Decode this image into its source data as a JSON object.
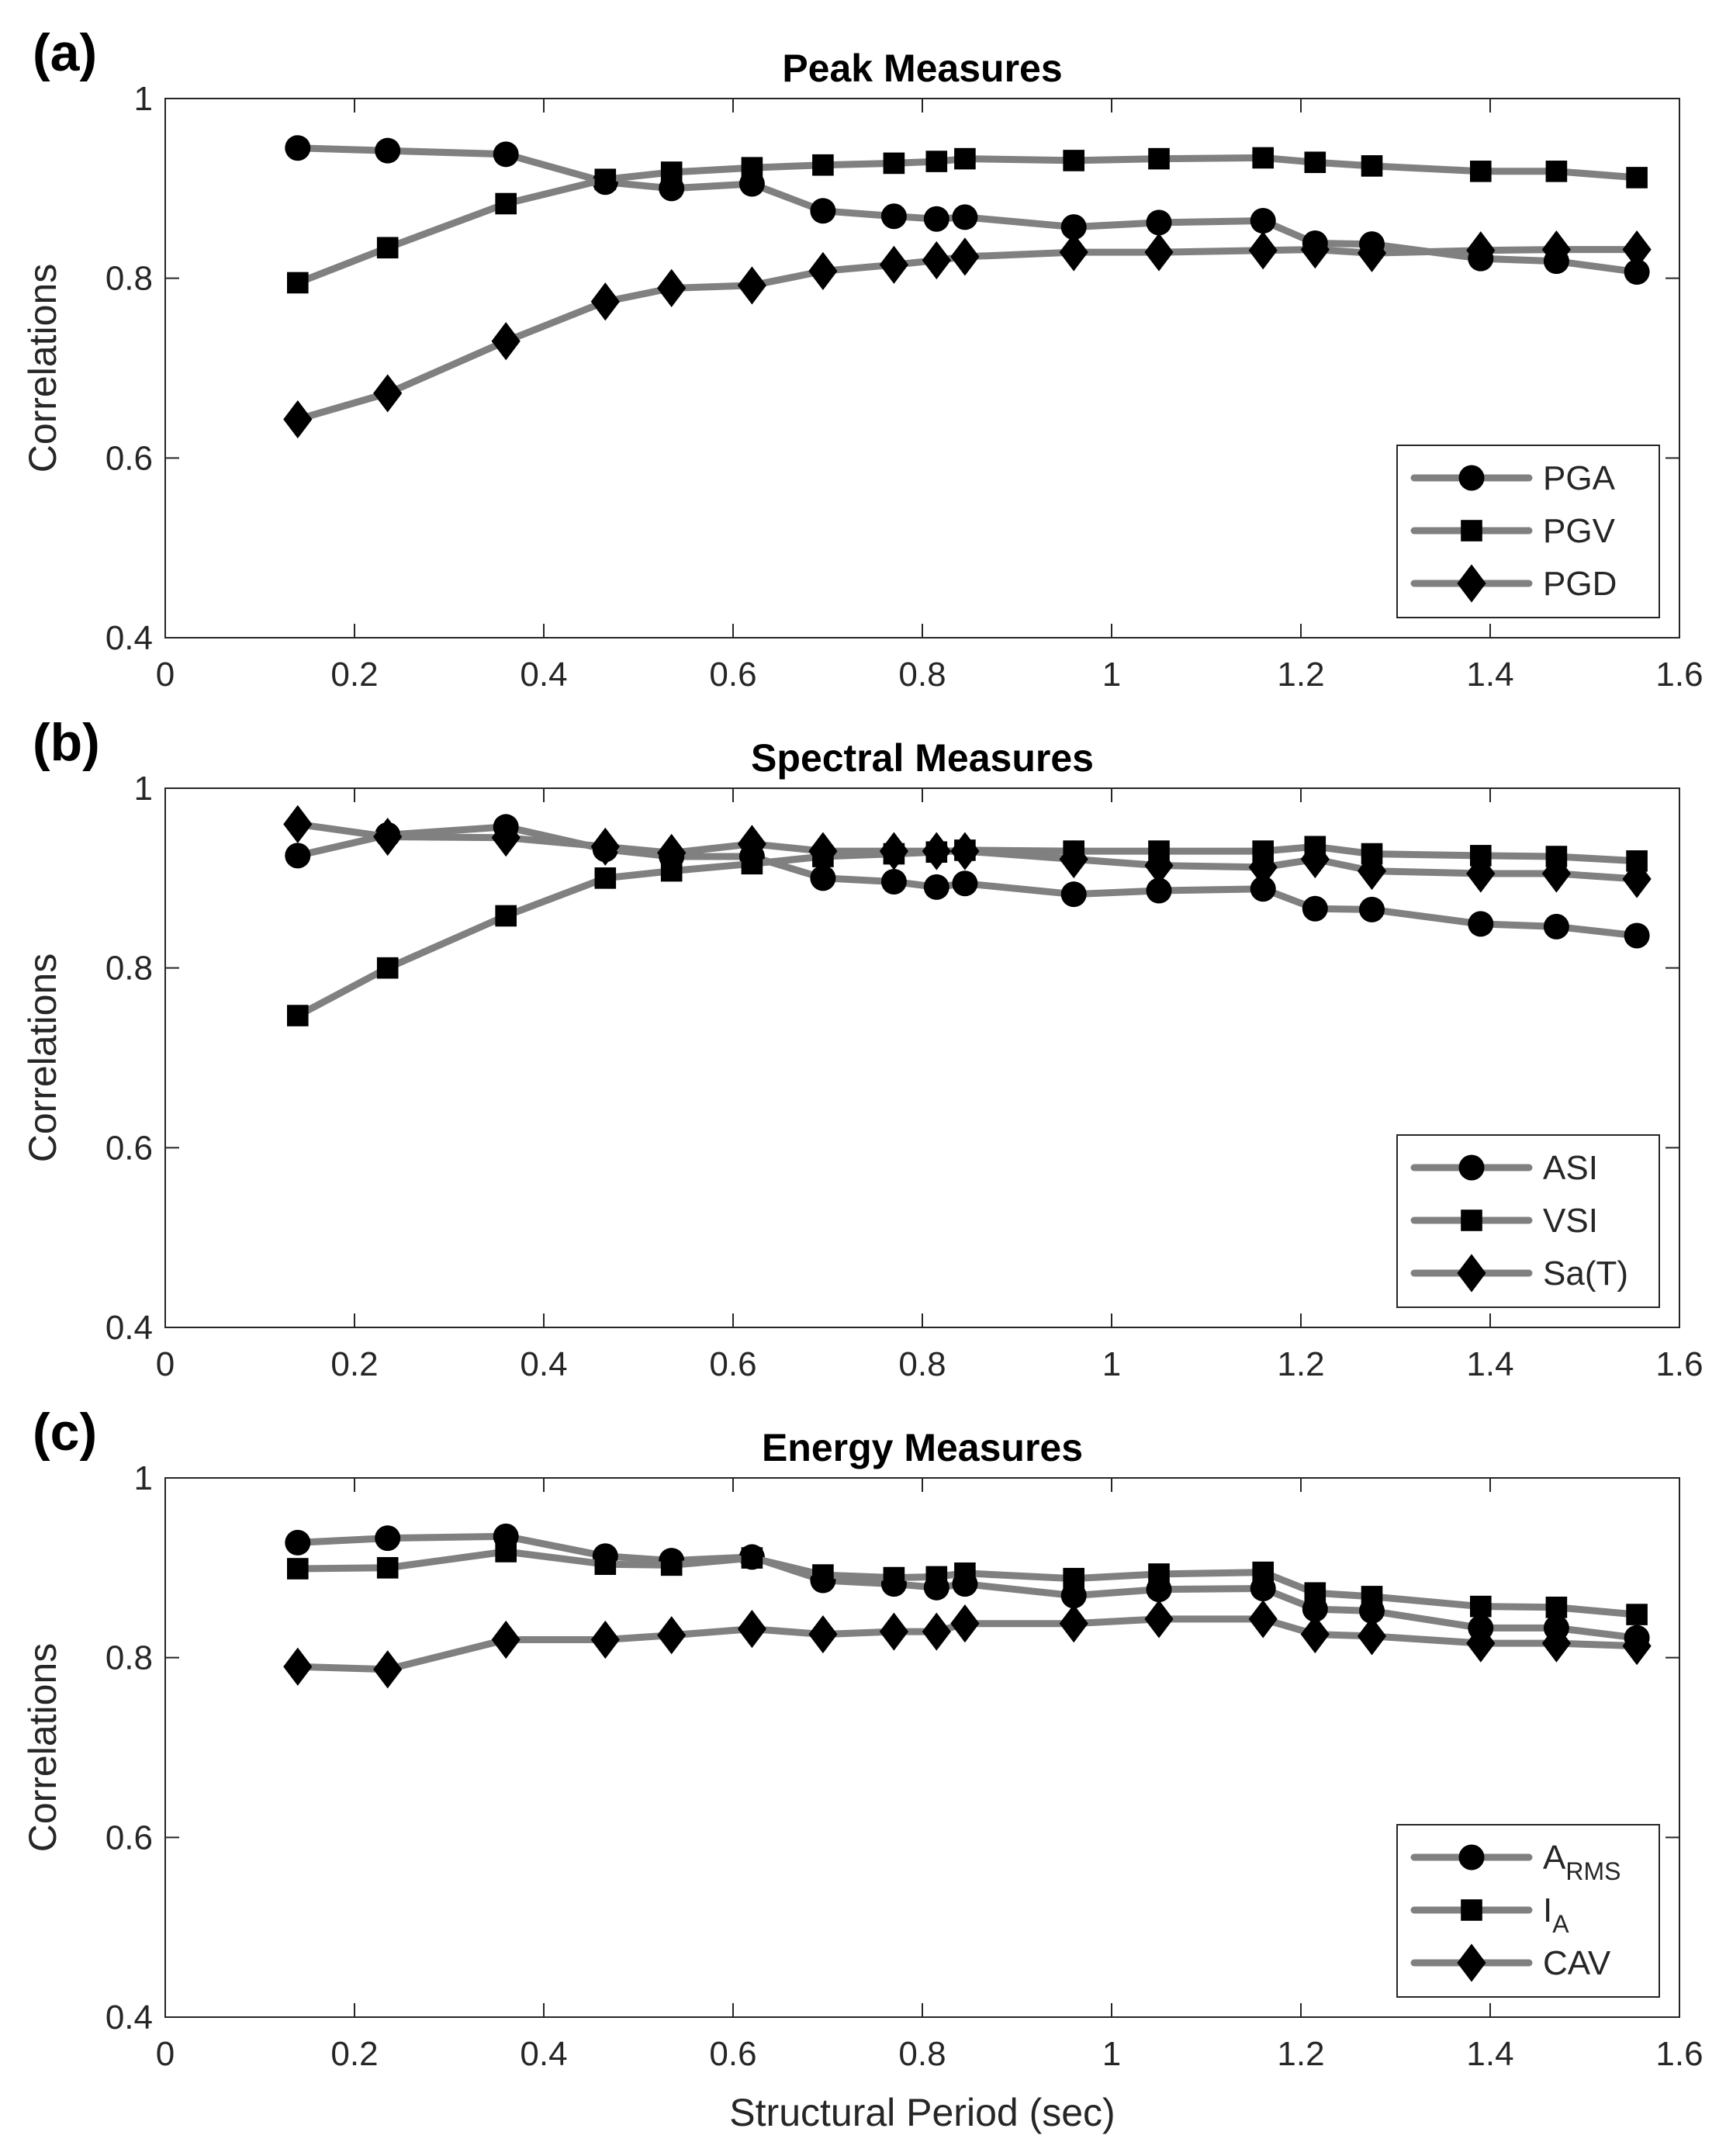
{
  "chart_data": [
    {
      "type": "line",
      "panel_label": "(a)",
      "title": "Peak Measures",
      "xlabel": "",
      "ylabel": "Correlations",
      "xlim": [
        0,
        1.6
      ],
      "ylim": [
        0.4,
        1
      ],
      "xticks": [
        "0",
        "0.2",
        "0.4",
        "0.6",
        "0.8",
        "1",
        "1.2",
        "1.4",
        "1.6"
      ],
      "yticks": [
        "0.4",
        "0.6",
        "0.8",
        "1"
      ],
      "grid": false,
      "legend_position": "bottom-right",
      "x": [
        0.14,
        0.235,
        0.36,
        0.465,
        0.535,
        0.62,
        0.695,
        0.77,
        0.815,
        0.845,
        0.96,
        1.05,
        1.16,
        1.215,
        1.275,
        1.39,
        1.47,
        1.555
      ],
      "series": [
        {
          "name": "PGA",
          "name_sub": "",
          "marker": "circle",
          "values": [
            0.945,
            0.942,
            0.938,
            0.907,
            0.9,
            0.905,
            0.875,
            0.869,
            0.866,
            0.868,
            0.857,
            0.862,
            0.864,
            0.839,
            0.838,
            0.822,
            0.819,
            0.807
          ]
        },
        {
          "name": "PGV",
          "name_sub": "",
          "marker": "square",
          "values": [
            0.795,
            0.834,
            0.883,
            0.91,
            0.918,
            0.923,
            0.926,
            0.928,
            0.93,
            0.933,
            0.931,
            0.933,
            0.934,
            0.929,
            0.925,
            0.919,
            0.919,
            0.912
          ]
        },
        {
          "name": "PGD",
          "name_sub": "",
          "marker": "diamond",
          "values": [
            0.643,
            0.672,
            0.73,
            0.774,
            0.789,
            0.792,
            0.808,
            0.815,
            0.82,
            0.824,
            0.829,
            0.829,
            0.831,
            0.832,
            0.828,
            0.831,
            0.832,
            0.832
          ]
        }
      ]
    },
    {
      "type": "line",
      "panel_label": "(b)",
      "title": "Spectral Measures",
      "xlabel": "",
      "ylabel": "Correlations",
      "xlim": [
        0,
        1.6
      ],
      "ylim": [
        0.4,
        1
      ],
      "xticks": [
        "0",
        "0.2",
        "0.4",
        "0.6",
        "0.8",
        "1",
        "1.2",
        "1.4",
        "1.6"
      ],
      "yticks": [
        "0.4",
        "0.6",
        "0.8",
        "1"
      ],
      "grid": false,
      "legend_position": "bottom-right",
      "x": [
        0.14,
        0.235,
        0.36,
        0.465,
        0.535,
        0.62,
        0.695,
        0.77,
        0.815,
        0.845,
        0.96,
        1.05,
        1.16,
        1.215,
        1.275,
        1.39,
        1.47,
        1.555
      ],
      "series": [
        {
          "name": "ASI",
          "name_sub": "",
          "marker": "circle",
          "values": [
            0.925,
            0.948,
            0.957,
            0.932,
            0.924,
            0.924,
            0.9,
            0.896,
            0.89,
            0.894,
            0.882,
            0.886,
            0.888,
            0.866,
            0.865,
            0.849,
            0.846,
            0.836
          ]
        },
        {
          "name": "VSI",
          "name_sub": "",
          "marker": "square",
          "values": [
            0.747,
            0.8,
            0.858,
            0.9,
            0.908,
            0.916,
            0.924,
            0.927,
            0.929,
            0.931,
            0.93,
            0.93,
            0.93,
            0.935,
            0.927,
            0.925,
            0.924,
            0.919
          ]
        },
        {
          "name": "Sa(T)",
          "name_sub": "",
          "marker": "diamond",
          "values": [
            0.96,
            0.946,
            0.945,
            0.935,
            0.928,
            0.938,
            0.93,
            0.93,
            0.93,
            0.93,
            0.921,
            0.914,
            0.912,
            0.921,
            0.908,
            0.905,
            0.905,
            0.899
          ]
        }
      ]
    },
    {
      "type": "line",
      "panel_label": "(c)",
      "title": "Energy Measures",
      "xlabel": "Structural Period (sec)",
      "ylabel": "Correlations",
      "xlim": [
        0,
        1.6
      ],
      "ylim": [
        0.4,
        1
      ],
      "xticks": [
        "0",
        "0.2",
        "0.4",
        "0.6",
        "0.8",
        "1",
        "1.2",
        "1.4",
        "1.6"
      ],
      "yticks": [
        "0.4",
        "0.6",
        "0.8",
        "1"
      ],
      "grid": false,
      "legend_position": "bottom-right",
      "x": [
        0.14,
        0.235,
        0.36,
        0.465,
        0.535,
        0.62,
        0.695,
        0.77,
        0.815,
        0.845,
        0.96,
        1.05,
        1.16,
        1.215,
        1.275,
        1.39,
        1.47,
        1.555
      ],
      "series": [
        {
          "name": "A",
          "name_sub": "RMS",
          "marker": "circle",
          "values": [
            0.928,
            0.933,
            0.935,
            0.913,
            0.908,
            0.912,
            0.886,
            0.882,
            0.878,
            0.882,
            0.869,
            0.876,
            0.877,
            0.854,
            0.852,
            0.833,
            0.833,
            0.822
          ]
        },
        {
          "name": "I",
          "name_sub": "A",
          "marker": "square",
          "values": [
            0.899,
            0.9,
            0.918,
            0.904,
            0.903,
            0.911,
            0.892,
            0.889,
            0.89,
            0.894,
            0.888,
            0.893,
            0.895,
            0.872,
            0.868,
            0.857,
            0.856,
            0.848
          ]
        },
        {
          "name": "CAV",
          "name_sub": "",
          "marker": "diamond",
          "values": [
            0.79,
            0.787,
            0.82,
            0.82,
            0.825,
            0.832,
            0.826,
            0.829,
            0.829,
            0.838,
            0.838,
            0.843,
            0.843,
            0.826,
            0.824,
            0.816,
            0.816,
            0.813
          ]
        }
      ]
    }
  ]
}
